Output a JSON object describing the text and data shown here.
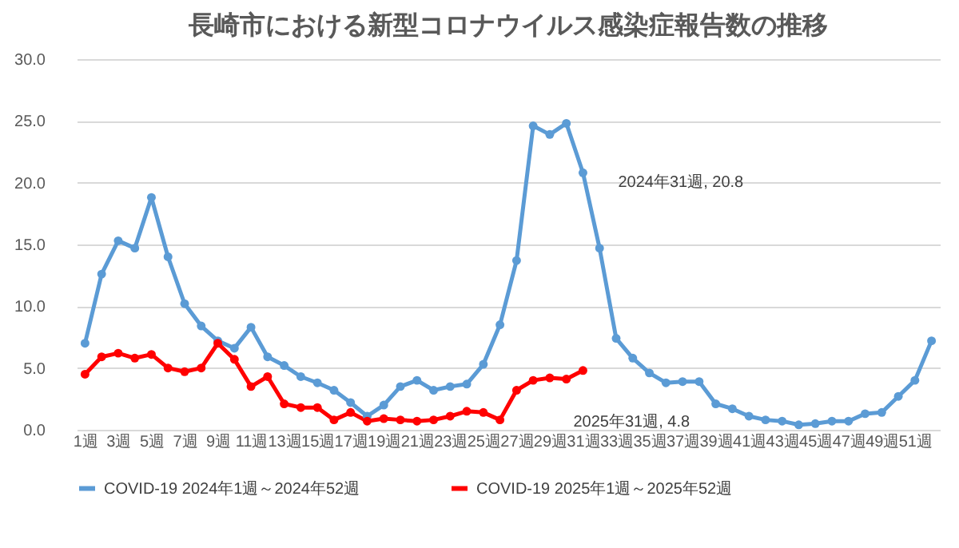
{
  "chart_data": {
    "type": "line",
    "title": "長崎市における新型コロナウイルス感染症報告数の推移",
    "categories": [
      "1週",
      null,
      "3週",
      null,
      "5週",
      null,
      "7週",
      null,
      "9週",
      null,
      "11週",
      null,
      "13週",
      null,
      "15週",
      null,
      "17週",
      null,
      "19週",
      null,
      "21週",
      null,
      "23週",
      null,
      "25週",
      null,
      "27週",
      null,
      "29週",
      null,
      "31週",
      null,
      "33週",
      null,
      "35週",
      null,
      "37週",
      null,
      "39週",
      null,
      "41週",
      null,
      "43週",
      null,
      "45週",
      null,
      "47週",
      null,
      "49週",
      null,
      "51週",
      null
    ],
    "series": [
      {
        "name": "COVID-19 2024年1週～2024年52週",
        "color": "#5b9bd5",
        "values": [
          7.0,
          12.6,
          15.3,
          14.7,
          18.8,
          14.0,
          10.2,
          8.4,
          7.2,
          6.6,
          8.3,
          5.9,
          5.2,
          4.3,
          3.8,
          3.2,
          2.2,
          1.1,
          2.0,
          3.5,
          4.0,
          3.2,
          3.5,
          3.7,
          5.3,
          8.5,
          13.7,
          24.6,
          23.9,
          24.8,
          20.8,
          14.7,
          7.4,
          5.8,
          4.6,
          3.8,
          3.9,
          3.9,
          2.1,
          1.7,
          1.1,
          0.8,
          0.7,
          0.4,
          0.5,
          0.7,
          0.7,
          1.3,
          1.4,
          2.7,
          4.0,
          7.2
        ]
      },
      {
        "name": "COVID-19 2025年1週～2025年52週",
        "color": "#ff0000",
        "values": [
          4.5,
          5.9,
          6.2,
          5.8,
          6.1,
          5.0,
          4.7,
          5.0,
          7.0,
          5.7,
          3.5,
          4.3,
          2.1,
          1.8,
          1.8,
          0.8,
          1.4,
          0.7,
          0.9,
          0.8,
          0.7,
          0.8,
          1.1,
          1.5,
          1.4,
          0.8,
          3.2,
          4.0,
          4.2,
          4.1,
          4.8,
          null,
          null,
          null,
          null,
          null,
          null,
          null,
          null,
          null,
          null,
          null,
          null,
          null,
          null,
          null,
          null,
          null,
          null,
          null,
          null,
          null
        ]
      }
    ],
    "ylim": [
      0,
      30
    ],
    "yticks": [
      {
        "value": 0,
        "label": "0.0"
      },
      {
        "value": 5,
        "label": "5.0"
      },
      {
        "value": 10,
        "label": "10.0"
      },
      {
        "value": 15,
        "label": "15.0"
      },
      {
        "value": 20,
        "label": "20.0"
      },
      {
        "value": 25,
        "label": "25.0"
      },
      {
        "value": 30,
        "label": "30.0"
      }
    ],
    "grid": "y",
    "legend": "bottom",
    "marker": "circle",
    "line_style": "solid",
    "annotations": [
      {
        "text": "2024年31週, 20.8",
        "x": "31週",
        "y": 20.8
      },
      {
        "text": "2025年31週, 4.8",
        "x": "31週",
        "y": 4.8
      }
    ]
  }
}
